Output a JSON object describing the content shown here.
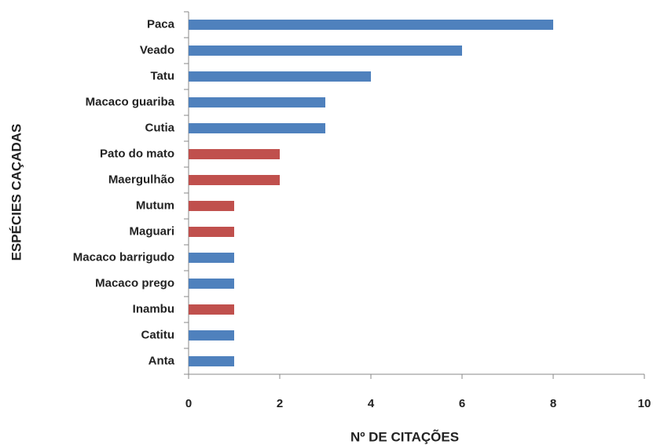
{
  "chart_data": {
    "type": "bar",
    "orientation": "horizontal",
    "categories": [
      "Paca",
      "Veado",
      "Tatu",
      "Macaco guariba",
      "Cutia",
      "Pato do mato",
      "Maergulhão",
      "Mutum",
      "Maguari",
      "Macaco barrigudo",
      "Macaco prego",
      "Inambu",
      "Catitu",
      "Anta"
    ],
    "values": [
      8,
      6,
      4,
      3,
      3,
      2,
      2,
      1,
      1,
      1,
      1,
      1,
      1,
      1
    ],
    "colors": [
      "#4f81bd",
      "#4f81bd",
      "#4f81bd",
      "#4f81bd",
      "#4f81bd",
      "#c0504d",
      "#c0504d",
      "#c0504d",
      "#c0504d",
      "#4f81bd",
      "#4f81bd",
      "#c0504d",
      "#4f81bd",
      "#4f81bd"
    ],
    "xlabel": "Nº DE CITAÇÕES",
    "ylabel": "ESPÉCIES CAÇADAS",
    "xlim": [
      0,
      10
    ],
    "xticks": [
      0,
      2,
      4,
      6,
      8,
      10
    ],
    "grid": false
  }
}
